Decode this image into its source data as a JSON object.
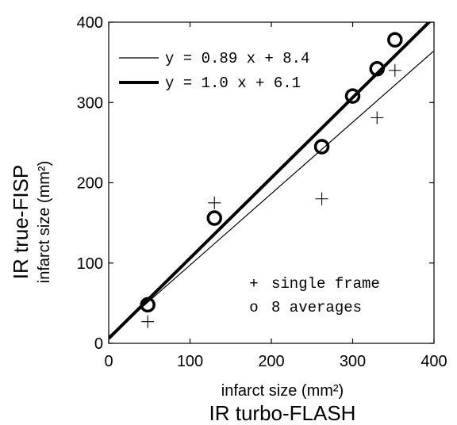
{
  "chart_data": {
    "type": "scatter",
    "xlim": [
      0,
      400
    ],
    "ylim": [
      0,
      400
    ],
    "x_ticks": [
      0,
      100,
      200,
      300,
      400
    ],
    "y_ticks": [
      0,
      100,
      200,
      300,
      400
    ],
    "xlabel": "IR turbo-FLASH",
    "xlabel_sub": "infarct size (mm²)",
    "ylabel": "IR true-FISP",
    "ylabel_sub": "infarct size (mm²)",
    "grid": false,
    "series": [
      {
        "name": "single frame",
        "marker": "plus",
        "points": [
          [
            48,
            27
          ],
          [
            130,
            175
          ],
          [
            262,
            180
          ],
          [
            330,
            281
          ],
          [
            352,
            340
          ]
        ]
      },
      {
        "name": "8 averages",
        "marker": "circle",
        "points": [
          [
            48,
            48
          ],
          [
            130,
            156
          ],
          [
            262,
            245
          ],
          [
            300,
            308
          ],
          [
            330,
            342
          ],
          [
            352,
            378
          ]
        ]
      }
    ],
    "fits": [
      {
        "label": "y = 0.89 x + 8.4",
        "slope": 0.89,
        "intercept": 8.4,
        "style": "thin"
      },
      {
        "label": "y = 1.0 x + 6.1",
        "slope": 1.0,
        "intercept": 6.1,
        "style": "thick"
      }
    ],
    "legend_markers": [
      {
        "symbol": "+",
        "label": "single frame"
      },
      {
        "symbol": "o",
        "label": "8 averages"
      }
    ]
  }
}
